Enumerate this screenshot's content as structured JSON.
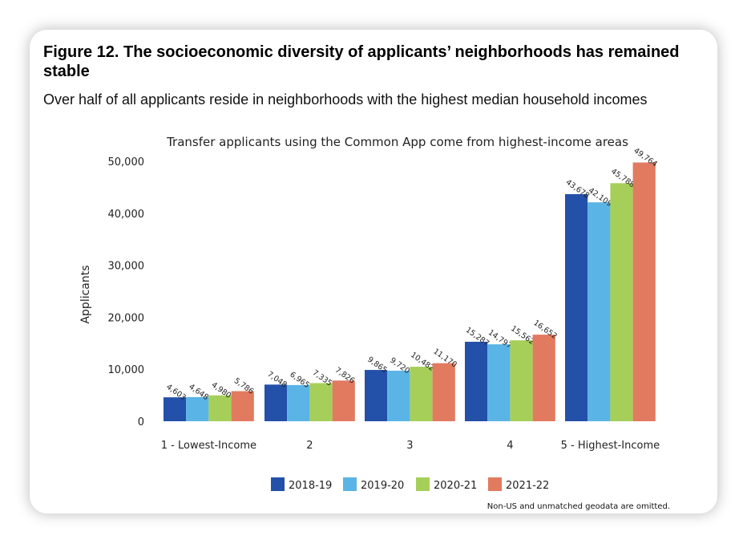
{
  "figure": {
    "title": "Figure 12. The socioeconomic diversity of applicants’ neighborhoods has remained stable",
    "subtitle": "Over half of all applicants reside in neighborhoods with the highest median household incomes"
  },
  "chart_data": {
    "type": "bar",
    "title": "Transfer applicants using the Common App come from highest-income areas",
    "xlabel": "",
    "ylabel": "Applicants",
    "ylim": [
      0,
      50000
    ],
    "yticks": [
      0,
      10000,
      20000,
      30000,
      40000,
      50000
    ],
    "ytick_labels": [
      "0",
      "10,000",
      "20,000",
      "30,000",
      "40,000",
      "50,000"
    ],
    "categories": [
      "1 - Lowest-Income",
      "2",
      "3",
      "4",
      "5 - Highest-Income"
    ],
    "series": [
      {
        "name": "2018-19",
        "color": "#2350a8",
        "values": [
          4603,
          7048,
          9865,
          15287,
          43678
        ],
        "labels": [
          "4,603",
          "7,048",
          "9,865",
          "15,287",
          "43,678"
        ]
      },
      {
        "name": "2019-20",
        "color": "#5ab4e5",
        "values": [
          4648,
          6965,
          9720,
          14797,
          42109
        ],
        "labels": [
          "4,648",
          "6,965",
          "9,720",
          "14,797",
          "42,109"
        ]
      },
      {
        "name": "2020-21",
        "color": "#a6cf5a",
        "values": [
          4980,
          7335,
          10482,
          15562,
          45788
        ],
        "labels": [
          "4,980",
          "7,335",
          "10,482",
          "15,562",
          "45,788"
        ]
      },
      {
        "name": "2021-22",
        "color": "#e27a60",
        "values": [
          5786,
          7826,
          11170,
          16652,
          49764
        ],
        "labels": [
          "5,786",
          "7,826",
          "11,170",
          "16,652",
          "49,764"
        ]
      }
    ],
    "legend": "bottom",
    "grid": false,
    "note": "Non-US and unmatched geodata are omitted."
  }
}
